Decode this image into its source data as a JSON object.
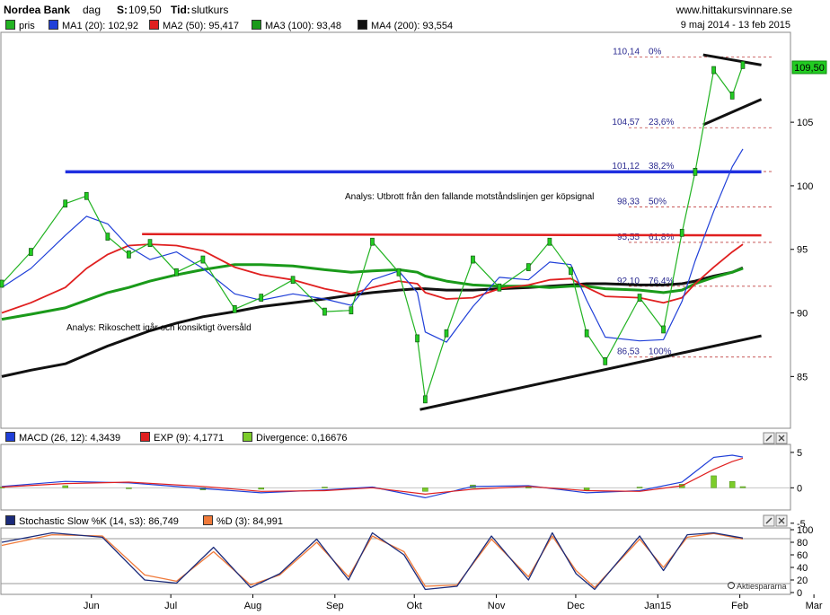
{
  "header": {
    "name": "Nordea Bank",
    "interval": "dag",
    "close_label": "S:",
    "close_value": "109,50",
    "time_label": "Tid:",
    "time_value": "slutkurs",
    "site": "www.hittakursvinnare.se",
    "date_range": "9 maj 2014 - 13 feb 2015"
  },
  "legend": [
    {
      "label": "pris",
      "color": "#22b322"
    },
    {
      "label": "MA1 (20): 102,92",
      "color": "#1f3fd8"
    },
    {
      "label": "MA2 (50): 95,417",
      "color": "#e02020"
    },
    {
      "label": "MA3 (100): 93,48",
      "color": "#1a9a1a"
    },
    {
      "label": "MA4 (200): 93,554",
      "color": "#111111"
    }
  ],
  "macd_legend": [
    {
      "label": "MACD (26, 12): 4,3439",
      "color": "#1f3fd8"
    },
    {
      "label": "EXP (9): 4,1771",
      "color": "#e02020"
    },
    {
      "label": "Divergence: 0,16676",
      "color": "#7ccc2a"
    }
  ],
  "stoch_legend": [
    {
      "label": "Stochastic Slow %K (14, s3): 86,749",
      "color": "#1a2a7a"
    },
    {
      "label": "%D (3): 84,991",
      "color": "#f07a3a"
    }
  ],
  "price_tag": "109,50",
  "annotations": {
    "analysis1": "Analys: Utbrott från den fallande motståndslinjen ger köpsignal",
    "analysis2": "Analys: Rikoschett igår och konsiktigt översåld"
  },
  "fib_levels": [
    {
      "value": 110.14,
      "price_label": "110,14",
      "pct_label": "0%"
    },
    {
      "value": 104.57,
      "price_label": "104,57",
      "pct_label": "23,6%"
    },
    {
      "value": 101.12,
      "price_label": "101,12",
      "pct_label": "38,2%"
    },
    {
      "value": 98.33,
      "price_label": "98,33",
      "pct_label": "50%"
    },
    {
      "value": 95.55,
      "price_label": "95,55",
      "pct_label": "61,8%"
    },
    {
      "value": 92.1,
      "price_label": "92,10",
      "pct_label": "76,4%"
    },
    {
      "value": 86.53,
      "price_label": "86,53",
      "pct_label": "100%"
    }
  ],
  "footer_brand": "Aktiespararna",
  "chart_data": [
    {
      "type": "line",
      "id": "price",
      "ylim": [
        81,
        112
      ],
      "y_ticks": [
        85,
        90,
        95,
        100,
        105
      ],
      "x_ticks": [
        "Jun",
        "Jul",
        "Aug",
        "Sep",
        "Okt",
        "Nov",
        "Dec",
        "Jan15",
        "Feb",
        "Mar"
      ],
      "x": [
        "2014-05-09",
        "2014-05-20",
        "2014-06-02",
        "2014-06-10",
        "2014-06-18",
        "2014-06-26",
        "2014-07-04",
        "2014-07-14",
        "2014-07-24",
        "2014-08-05",
        "2014-08-15",
        "2014-08-27",
        "2014-09-08",
        "2014-09-18",
        "2014-09-26",
        "2014-10-06",
        "2014-10-13",
        "2014-10-16",
        "2014-10-24",
        "2014-11-03",
        "2014-11-13",
        "2014-11-24",
        "2014-12-02",
        "2014-12-10",
        "2014-12-16",
        "2014-12-23",
        "2015-01-05",
        "2015-01-14",
        "2015-01-21",
        "2015-01-26",
        "2015-02-02",
        "2015-02-09",
        "2015-02-13"
      ],
      "series": [
        {
          "name": "pris",
          "values": [
            92.3,
            94.8,
            98.6,
            99.2,
            96.0,
            94.6,
            95.5,
            93.2,
            94.2,
            90.3,
            91.2,
            92.6,
            90.1,
            90.2,
            95.6,
            93.2,
            88.0,
            83.2,
            88.4,
            94.2,
            92.0,
            93.6,
            95.6,
            93.3,
            88.4,
            86.2,
            91.2,
            88.7,
            96.3,
            101.1,
            109.1,
            107.1,
            109.5
          ]
        },
        {
          "name": "MA1 (20): 102,92",
          "values": [
            92.0,
            93.5,
            96.1,
            97.6,
            97.0,
            95.2,
            94.2,
            94.8,
            93.5,
            91.5,
            91.0,
            91.5,
            91.1,
            90.6,
            92.6,
            93.3,
            91.6,
            88.5,
            87.7,
            90.5,
            92.8,
            92.6,
            94.0,
            93.8,
            91.0,
            88.1,
            87.8,
            87.9,
            90.9,
            94.1,
            98.0,
            101.5,
            102.9
          ]
        },
        {
          "name": "MA2 (50): 95,417",
          "values": [
            90.0,
            90.8,
            92.0,
            93.5,
            94.6,
            95.3,
            95.4,
            95.3,
            94.9,
            93.6,
            93.0,
            92.6,
            91.9,
            91.5,
            92.0,
            92.5,
            92.3,
            91.6,
            91.1,
            91.2,
            91.9,
            92.2,
            92.6,
            92.7,
            92.0,
            91.3,
            91.2,
            90.8,
            91.2,
            92.3,
            93.6,
            94.8,
            95.4
          ]
        },
        {
          "name": "MA3 (100): 93,48",
          "values": [
            89.5,
            89.9,
            90.4,
            91.0,
            91.6,
            92.0,
            92.5,
            93.0,
            93.4,
            93.8,
            93.8,
            93.7,
            93.4,
            93.2,
            93.3,
            93.4,
            93.2,
            92.9,
            92.5,
            92.2,
            92.1,
            92.1,
            92.0,
            92.1,
            92.1,
            91.9,
            91.8,
            91.6,
            91.8,
            92.3,
            92.8,
            93.2,
            93.5
          ]
        },
        {
          "name": "MA4 (200): 93,554",
          "values": [
            85.0,
            85.5,
            86.0,
            86.7,
            87.4,
            88.0,
            88.6,
            89.2,
            89.7,
            90.1,
            90.5,
            90.8,
            91.1,
            91.4,
            91.6,
            91.8,
            91.9,
            91.9,
            91.8,
            91.8,
            91.9,
            92.0,
            92.1,
            92.2,
            92.3,
            92.3,
            92.2,
            92.2,
            92.3,
            92.5,
            92.9,
            93.2,
            93.55
          ]
        }
      ],
      "trend_lines": [
        {
          "name": "breakout-level",
          "color": "#1f2fe0",
          "points": [
            [
              "2014-06-02",
              101.1
            ],
            [
              "2015-02-20",
              101.1
            ]
          ]
        },
        {
          "name": "resistance",
          "color": "#e02020",
          "points": [
            [
              "2014-07-01",
              96.2
            ],
            [
              "2015-02-20",
              96.1
            ]
          ]
        },
        {
          "name": "support",
          "color": "#111111",
          "points": [
            [
              "2014-10-14",
              82.4
            ],
            [
              "2015-02-20",
              88.2
            ]
          ]
        },
        {
          "name": "wedge-upper",
          "color": "#111111",
          "points": [
            [
              "2015-01-29",
              110.3
            ],
            [
              "2015-02-20",
              109.5
            ]
          ]
        },
        {
          "name": "wedge-lower",
          "color": "#111111",
          "points": [
            [
              "2015-01-29",
              104.8
            ],
            [
              "2015-02-20",
              106.8
            ]
          ]
        }
      ]
    },
    {
      "type": "line",
      "id": "macd",
      "ylim": [
        -3,
        6
      ],
      "y_ticks": [
        5,
        0,
        -5
      ],
      "x": [
        "2014-05-09",
        "2014-06-02",
        "2014-06-26",
        "2014-07-24",
        "2014-08-15",
        "2014-09-08",
        "2014-09-26",
        "2014-10-16",
        "2014-11-03",
        "2014-11-24",
        "2014-12-16",
        "2015-01-05",
        "2015-01-21",
        "2015-02-02",
        "2015-02-09",
        "2015-02-13"
      ],
      "series": [
        {
          "name": "MACD (26, 12): 4,3439",
          "values": [
            0.2,
            0.9,
            0.7,
            -0.1,
            -0.7,
            -0.3,
            0.1,
            -1.4,
            0.2,
            0.3,
            -0.7,
            -0.4,
            0.8,
            4.3,
            4.6,
            4.34
          ]
        },
        {
          "name": "EXP (9): 4,1771",
          "values": [
            0.1,
            0.6,
            0.8,
            0.2,
            -0.5,
            -0.4,
            0.0,
            -0.9,
            -0.2,
            0.2,
            -0.4,
            -0.5,
            0.3,
            2.6,
            3.7,
            4.18
          ]
        },
        {
          "name": "Divergence: 0,16676",
          "values": [
            0.1,
            0.3,
            -0.1,
            -0.3,
            -0.2,
            0.1,
            0.1,
            -0.5,
            0.4,
            0.1,
            -0.3,
            0.1,
            0.5,
            1.7,
            0.9,
            0.17
          ]
        }
      ]
    },
    {
      "type": "line",
      "id": "stochastic",
      "ylim": [
        0,
        100
      ],
      "y_ticks": [
        100,
        80,
        60,
        40,
        20,
        0
      ],
      "x": [
        "2014-05-09",
        "2014-05-28",
        "2014-06-16",
        "2014-07-02",
        "2014-07-14",
        "2014-07-28",
        "2014-08-11",
        "2014-08-22",
        "2014-09-05",
        "2014-09-17",
        "2014-09-26",
        "2014-10-08",
        "2014-10-16",
        "2014-10-28",
        "2014-11-10",
        "2014-11-24",
        "2014-12-03",
        "2014-12-12",
        "2014-12-19",
        "2015-01-05",
        "2015-01-14",
        "2015-01-23",
        "2015-02-02",
        "2015-02-13"
      ],
      "series": [
        {
          "name": "Stochastic Slow %K (14, s3): 86,749",
          "values": [
            80,
            95,
            88,
            20,
            15,
            72,
            8,
            30,
            85,
            20,
            95,
            60,
            5,
            10,
            90,
            20,
            95,
            30,
            5,
            90,
            35,
            92,
            95,
            86.7
          ]
        },
        {
          "name": "%D (3): 84,991",
          "values": [
            75,
            92,
            90,
            28,
            18,
            65,
            12,
            28,
            80,
            25,
            90,
            65,
            10,
            12,
            85,
            25,
            90,
            35,
            8,
            85,
            40,
            88,
            94,
            85.0
          ]
        }
      ]
    }
  ]
}
